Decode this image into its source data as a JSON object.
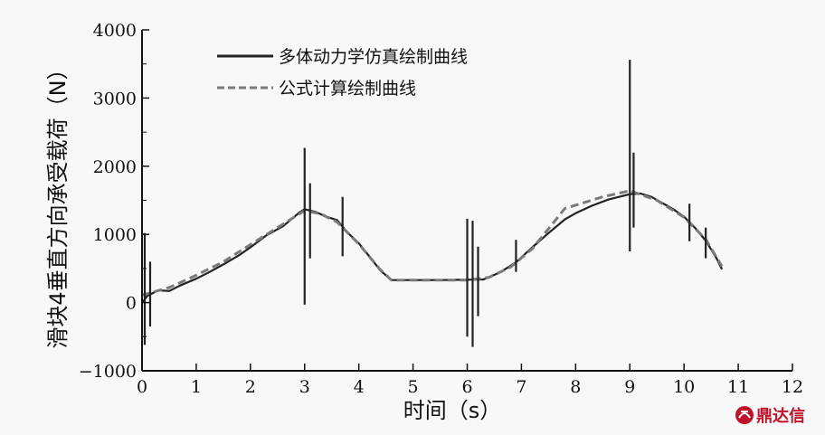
{
  "chart_data": {
    "type": "line",
    "title": "",
    "xlabel": "时间（s）",
    "ylabel": "滑块4垂直方向承受载荷（N）",
    "xlim": [
      0,
      12
    ],
    "ylim": [
      -1000,
      4000
    ],
    "xticks": [
      0,
      1,
      2,
      3,
      4,
      5,
      6,
      7,
      8,
      9,
      10,
      11,
      12
    ],
    "yticks": [
      -1000,
      0,
      1000,
      2000,
      3000,
      4000
    ],
    "ytick_labels": [
      "−1000",
      "0",
      "1000",
      "2000",
      "3000",
      "4000"
    ],
    "grid": false,
    "legend_position": "top-left",
    "series": [
      {
        "name": "多体动力学仿真绘制曲线",
        "style": "solid",
        "color": "#222222",
        "points": [
          [
            0,
            0
          ],
          [
            0.1,
            100
          ],
          [
            0.3,
            180
          ],
          [
            0.5,
            170
          ],
          [
            0.7,
            250
          ],
          [
            1.0,
            350
          ],
          [
            1.2,
            430
          ],
          [
            1.5,
            560
          ],
          [
            1.8,
            700
          ],
          [
            2.0,
            810
          ],
          [
            2.3,
            990
          ],
          [
            2.6,
            1120
          ],
          [
            2.9,
            1320
          ],
          [
            3.0,
            1370
          ],
          [
            3.2,
            1330
          ],
          [
            3.4,
            1260
          ],
          [
            3.6,
            1210
          ],
          [
            3.8,
            1020
          ],
          [
            4.0,
            870
          ],
          [
            4.2,
            670
          ],
          [
            4.4,
            470
          ],
          [
            4.6,
            330
          ],
          [
            5.0,
            330
          ],
          [
            5.5,
            330
          ],
          [
            6.0,
            335
          ],
          [
            6.3,
            340
          ],
          [
            6.6,
            440
          ],
          [
            6.9,
            590
          ],
          [
            7.2,
            810
          ],
          [
            7.5,
            1020
          ],
          [
            7.8,
            1220
          ],
          [
            8.0,
            1310
          ],
          [
            8.3,
            1420
          ],
          [
            8.6,
            1510
          ],
          [
            8.9,
            1570
          ],
          [
            9.0,
            1590
          ],
          [
            9.2,
            1600
          ],
          [
            9.4,
            1550
          ],
          [
            9.6,
            1460
          ],
          [
            9.8,
            1370
          ],
          [
            10.0,
            1260
          ],
          [
            10.2,
            1100
          ],
          [
            10.4,
            910
          ],
          [
            10.6,
            650
          ],
          [
            10.7,
            490
          ]
        ]
      },
      {
        "name": "公式计算绘制曲线",
        "style": "dashed",
        "color": "#7a7a7a",
        "points": [
          [
            0,
            110
          ],
          [
            0.5,
            220
          ],
          [
            1.0,
            400
          ],
          [
            1.5,
            600
          ],
          [
            2.0,
            850
          ],
          [
            2.5,
            1100
          ],
          [
            3.0,
            1350
          ],
          [
            3.3,
            1300
          ],
          [
            3.6,
            1180
          ],
          [
            4.0,
            860
          ],
          [
            4.4,
            480
          ],
          [
            4.6,
            330
          ],
          [
            6.0,
            330
          ],
          [
            6.4,
            370
          ],
          [
            6.8,
            520
          ],
          [
            7.2,
            790
          ],
          [
            7.6,
            1180
          ],
          [
            7.8,
            1380
          ],
          [
            8.5,
            1550
          ],
          [
            9.0,
            1640
          ],
          [
            9.5,
            1500
          ],
          [
            10.0,
            1250
          ],
          [
            10.4,
            930
          ],
          [
            10.7,
            530
          ]
        ]
      }
    ],
    "spikes": [
      {
        "x": 0.05,
        "min": -620,
        "max": 1020
      },
      {
        "x": 0.15,
        "min": -350,
        "max": 600
      },
      {
        "x": 3.0,
        "min": -30,
        "max": 2270
      },
      {
        "x": 3.1,
        "min": 650,
        "max": 1750
      },
      {
        "x": 3.7,
        "min": 680,
        "max": 1550
      },
      {
        "x": 6.0,
        "min": -500,
        "max": 1230
      },
      {
        "x": 6.1,
        "min": -650,
        "max": 1200
      },
      {
        "x": 6.2,
        "min": -200,
        "max": 820
      },
      {
        "x": 6.9,
        "min": 450,
        "max": 920
      },
      {
        "x": 9.0,
        "min": 750,
        "max": 3560
      },
      {
        "x": 9.07,
        "min": 1100,
        "max": 2200
      },
      {
        "x": 10.1,
        "min": 900,
        "max": 1450
      },
      {
        "x": 10.4,
        "min": 650,
        "max": 1100
      }
    ]
  },
  "watermark": {
    "text": "鼎达信"
  }
}
